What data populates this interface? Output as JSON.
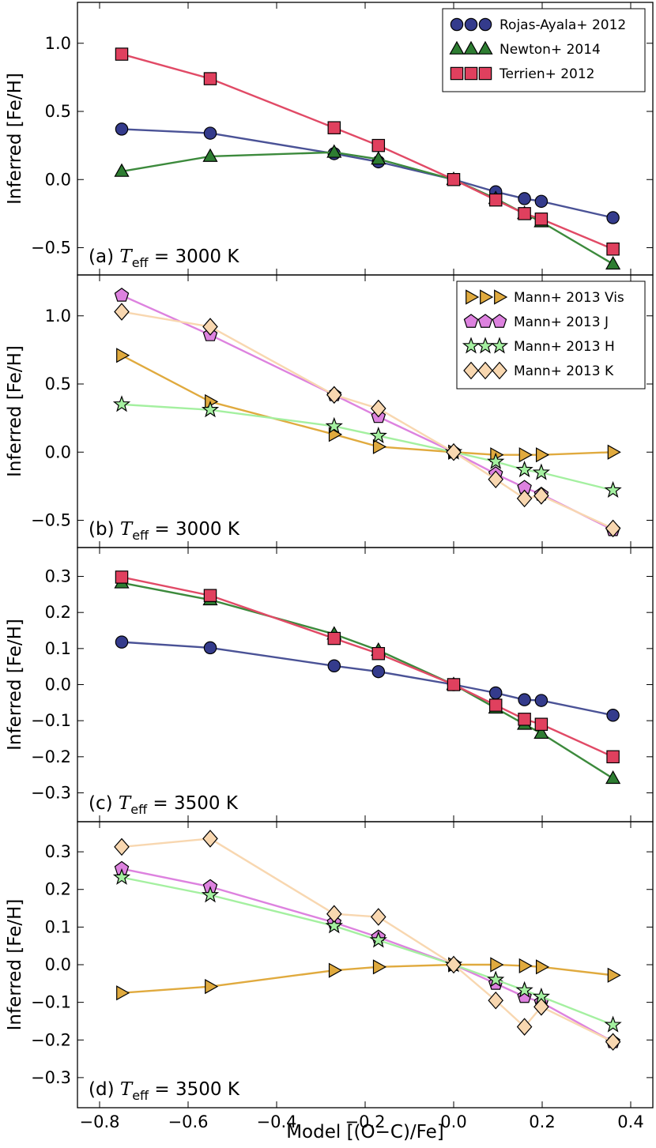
{
  "figure": {
    "xlabel": "Model [(O−C)/Fe]",
    "ylabel": "Inferred [Fe/H]",
    "x_ticks": [
      "−0.8",
      "−0.6",
      "−0.4",
      "−0.2",
      "0.0",
      "0.2",
      "0.4"
    ]
  },
  "chart_data": [
    {
      "panel": "a",
      "type": "line",
      "label_prefix": "(a) ",
      "teff_symbol": "T",
      "teff_sub": "eff",
      "label_suffix": " = 3000 K",
      "xlim": [
        -0.85,
        0.45
      ],
      "ylim": [
        -0.7,
        1.3
      ],
      "yticks": [
        -0.5,
        0.0,
        0.5,
        1.0
      ],
      "ytick_labels": [
        "−0.5",
        "0.0",
        "0.5",
        "1.0"
      ],
      "legend": "top-right",
      "series": [
        {
          "name": "Rojas-Ayala+ 2012",
          "marker": "circle",
          "color": "#343B8C",
          "line": "#4A5296",
          "x": [
            -0.75,
            -0.55,
            -0.27,
            -0.17,
            0.0,
            0.095,
            0.16,
            0.198,
            0.36
          ],
          "y": [
            0.37,
            0.34,
            0.19,
            0.13,
            0.0,
            -0.09,
            -0.14,
            -0.16,
            -0.28
          ]
        },
        {
          "name": "Newton+ 2014",
          "marker": "triangle",
          "color": "#2E7D32",
          "line": "#3C8A3C",
          "x": [
            -0.75,
            -0.55,
            -0.27,
            -0.17,
            0.0,
            0.095,
            0.16,
            0.198,
            0.36
          ],
          "y": [
            0.06,
            0.17,
            0.2,
            0.15,
            0.0,
            -0.14,
            -0.25,
            -0.31,
            -0.62
          ]
        },
        {
          "name": "Terrien+ 2012",
          "marker": "square",
          "color": "#E0405E",
          "line": "#E14A66",
          "x": [
            -0.75,
            -0.55,
            -0.27,
            -0.17,
            0.0,
            0.095,
            0.16,
            0.198,
            0.36
          ],
          "y": [
            0.92,
            0.74,
            0.38,
            0.25,
            0.0,
            -0.15,
            -0.25,
            -0.29,
            -0.51
          ]
        }
      ]
    },
    {
      "panel": "b",
      "type": "line",
      "label_prefix": "(b) ",
      "teff_symbol": "T",
      "teff_sub": "eff",
      "label_suffix": " = 3000 K",
      "xlim": [
        -0.85,
        0.45
      ],
      "ylim": [
        -0.7,
        1.3
      ],
      "yticks": [
        -0.5,
        0.0,
        0.5,
        1.0
      ],
      "ytick_labels": [
        "−0.5",
        "0.0",
        "0.5",
        "1.0"
      ],
      "legend": "top-right",
      "series": [
        {
          "name": "Mann+ 2013 Vis",
          "marker": "triangle-right",
          "color": "#E0AA3E",
          "line": "#E0AA3E",
          "x": [
            -0.75,
            -0.55,
            -0.27,
            -0.17,
            0.0,
            0.095,
            0.16,
            0.198,
            0.36
          ],
          "y": [
            0.71,
            0.37,
            0.13,
            0.04,
            0.0,
            -0.02,
            -0.02,
            -0.02,
            0.0
          ]
        },
        {
          "name": "Mann+ 2013 J",
          "marker": "pentagon",
          "color": "#DD82DF",
          "line": "#DD82DF",
          "x": [
            -0.75,
            -0.55,
            -0.27,
            -0.17,
            0.0,
            0.095,
            0.16,
            0.198,
            0.36
          ],
          "y": [
            1.15,
            0.86,
            0.42,
            0.26,
            0.0,
            -0.16,
            -0.26,
            -0.31,
            -0.57
          ]
        },
        {
          "name": "Mann+ 2013 H",
          "marker": "star",
          "color": "#A4F0A0",
          "line": "#A4F0A0",
          "x": [
            -0.75,
            -0.55,
            -0.27,
            -0.17,
            0.0,
            0.095,
            0.16,
            0.198,
            0.36
          ],
          "y": [
            0.35,
            0.31,
            0.19,
            0.12,
            0.0,
            -0.07,
            -0.13,
            -0.15,
            -0.28
          ]
        },
        {
          "name": "Mann+ 2013 K",
          "marker": "diamond",
          "color": "#F8D7B0",
          "line": "#F8D7B0",
          "x": [
            -0.75,
            -0.55,
            -0.27,
            -0.17,
            0.0,
            0.095,
            0.16,
            0.198,
            0.36
          ],
          "y": [
            1.03,
            0.92,
            0.42,
            0.32,
            0.0,
            -0.2,
            -0.34,
            -0.32,
            -0.56
          ]
        }
      ]
    },
    {
      "panel": "c",
      "type": "line",
      "label_prefix": "(c) ",
      "teff_symbol": "T",
      "teff_sub": "eff",
      "label_suffix": " = 3500 K",
      "xlim": [
        -0.85,
        0.45
      ],
      "ylim": [
        -0.38,
        0.38
      ],
      "yticks": [
        -0.3,
        -0.2,
        -0.1,
        0.0,
        0.1,
        0.2,
        0.3
      ],
      "ytick_labels": [
        "−0.3",
        "−0.2",
        "−0.1",
        "0.0",
        "0.1",
        "0.2",
        "0.3"
      ],
      "series": [
        {
          "name": "Rojas-Ayala+ 2012",
          "marker": "circle",
          "color": "#343B8C",
          "line": "#4A5296",
          "x": [
            -0.75,
            -0.55,
            -0.27,
            -0.17,
            0.0,
            0.095,
            0.16,
            0.198,
            0.36
          ],
          "y": [
            0.118,
            0.102,
            0.052,
            0.036,
            0.0,
            -0.023,
            -0.042,
            -0.044,
            -0.085
          ]
        },
        {
          "name": "Newton+ 2014",
          "marker": "triangle",
          "color": "#2E7D32",
          "line": "#3C8A3C",
          "x": [
            -0.75,
            -0.55,
            -0.27,
            -0.17,
            0.0,
            0.095,
            0.16,
            0.198,
            0.36
          ],
          "y": [
            0.282,
            0.235,
            0.14,
            0.095,
            0.0,
            -0.065,
            -0.11,
            -0.135,
            -0.26
          ]
        },
        {
          "name": "Terrien+ 2012",
          "marker": "square",
          "color": "#E0405E",
          "line": "#E14A66",
          "x": [
            -0.75,
            -0.55,
            -0.27,
            -0.17,
            0.0,
            0.095,
            0.16,
            0.198,
            0.36
          ],
          "y": [
            0.298,
            0.247,
            0.128,
            0.086,
            0.0,
            -0.057,
            -0.096,
            -0.11,
            -0.2
          ]
        }
      ]
    },
    {
      "panel": "d",
      "type": "line",
      "label_prefix": "(d) ",
      "teff_symbol": "T",
      "teff_sub": "eff",
      "label_suffix": " = 3500 K",
      "xlim": [
        -0.85,
        0.45
      ],
      "ylim": [
        -0.38,
        0.38
      ],
      "yticks": [
        -0.3,
        -0.2,
        -0.1,
        0.0,
        0.1,
        0.2,
        0.3
      ],
      "ytick_labels": [
        "−0.3",
        "−0.2",
        "−0.1",
        "0.0",
        "0.1",
        "0.2",
        "0.3"
      ],
      "series": [
        {
          "name": "Mann+ 2013 Vis",
          "marker": "triangle-right",
          "color": "#E0AA3E",
          "line": "#E0AA3E",
          "x": [
            -0.75,
            -0.55,
            -0.27,
            -0.17,
            0.0,
            0.095,
            0.16,
            0.198,
            0.36
          ],
          "y": [
            -0.075,
            -0.058,
            -0.015,
            -0.006,
            0.0,
            0.0,
            -0.003,
            -0.006,
            -0.028
          ]
        },
        {
          "name": "Mann+ 2013 J",
          "marker": "pentagon",
          "color": "#DD82DF",
          "line": "#DD82DF",
          "x": [
            -0.75,
            -0.55,
            -0.27,
            -0.17,
            0.0,
            0.095,
            0.16,
            0.198,
            0.36
          ],
          "y": [
            0.255,
            0.207,
            0.112,
            0.073,
            0.0,
            -0.05,
            -0.085,
            -0.1,
            -0.205
          ]
        },
        {
          "name": "Mann+ 2013 H",
          "marker": "star",
          "color": "#A4F0A0",
          "line": "#A4F0A0",
          "x": [
            -0.75,
            -0.55,
            -0.27,
            -0.17,
            0.0,
            0.095,
            0.16,
            0.198,
            0.36
          ],
          "y": [
            0.232,
            0.185,
            0.103,
            0.065,
            0.0,
            -0.04,
            -0.068,
            -0.085,
            -0.16
          ]
        },
        {
          "name": "Mann+ 2013 K",
          "marker": "diamond",
          "color": "#F8D7B0",
          "line": "#F8D7B0",
          "x": [
            -0.75,
            -0.55,
            -0.27,
            -0.17,
            0.0,
            0.095,
            0.16,
            0.198,
            0.36
          ],
          "y": [
            0.313,
            0.335,
            0.135,
            0.127,
            0.0,
            -0.095,
            -0.165,
            -0.112,
            -0.205
          ]
        }
      ]
    }
  ]
}
